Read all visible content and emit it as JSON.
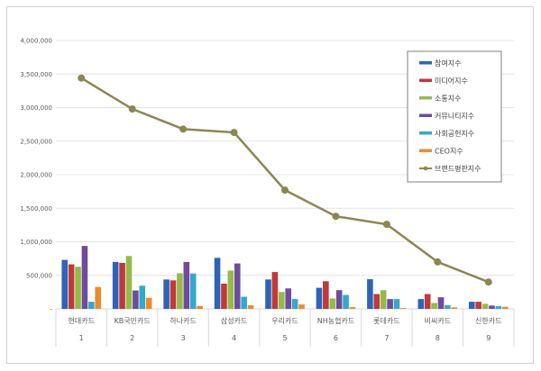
{
  "chart_data": {
    "type": "bar",
    "categories": [
      "현대카드",
      "KB국민카드",
      "하나카드",
      "삼성카드",
      "우리카드",
      "NH농협카드",
      "롯데카드",
      "비씨카드",
      "신한카드"
    ],
    "ranks": [
      "1",
      "2",
      "3",
      "4",
      "5",
      "6",
      "7",
      "8",
      "9"
    ],
    "ylim": [
      0,
      4000000
    ],
    "yticks": [
      "-",
      "500,000",
      "1,000,000",
      "1,500,000",
      "2,000,000",
      "2,500,000",
      "3,000,000",
      "3,500,000",
      "4,000,000"
    ],
    "grid": true,
    "legend_position": "top-right",
    "series": [
      {
        "name": "참여지수",
        "type": "bar",
        "color": "#2E64B8",
        "values": [
          730000,
          699000,
          438000,
          761000,
          438000,
          314000,
          442000,
          146000,
          106000
        ]
      },
      {
        "name": "미디어지수",
        "type": "bar",
        "color": "#C0393B",
        "values": [
          664000,
          686000,
          425000,
          376000,
          549000,
          412000,
          221000,
          221000,
          106000
        ]
      },
      {
        "name": "소통지수",
        "type": "bar",
        "color": "#93BB49",
        "values": [
          628000,
          788000,
          531000,
          571000,
          252000,
          155000,
          279000,
          88000,
          75000
        ]
      },
      {
        "name": "커뮤니티지수",
        "type": "bar",
        "color": "#6F4C9B",
        "values": [
          938000,
          274000,
          699000,
          677000,
          305000,
          279000,
          146000,
          173000,
          49000
        ]
      },
      {
        "name": "사회공헌지수",
        "type": "bar",
        "color": "#33A9C9",
        "values": [
          106000,
          345000,
          527000,
          181000,
          146000,
          208000,
          146000,
          53000,
          40000
        ]
      },
      {
        "name": "CEO지수",
        "type": "bar",
        "color": "#F08A2C",
        "values": [
          327000,
          164000,
          44000,
          53000,
          66000,
          27000,
          13000,
          22000,
          31000
        ]
      },
      {
        "name": "브랜드평판지수",
        "type": "line",
        "color": "#8B8750",
        "values": [
          3440000,
          2980000,
          2680000,
          2630000,
          1770000,
          1380000,
          1260000,
          700000,
          400000
        ]
      }
    ]
  }
}
